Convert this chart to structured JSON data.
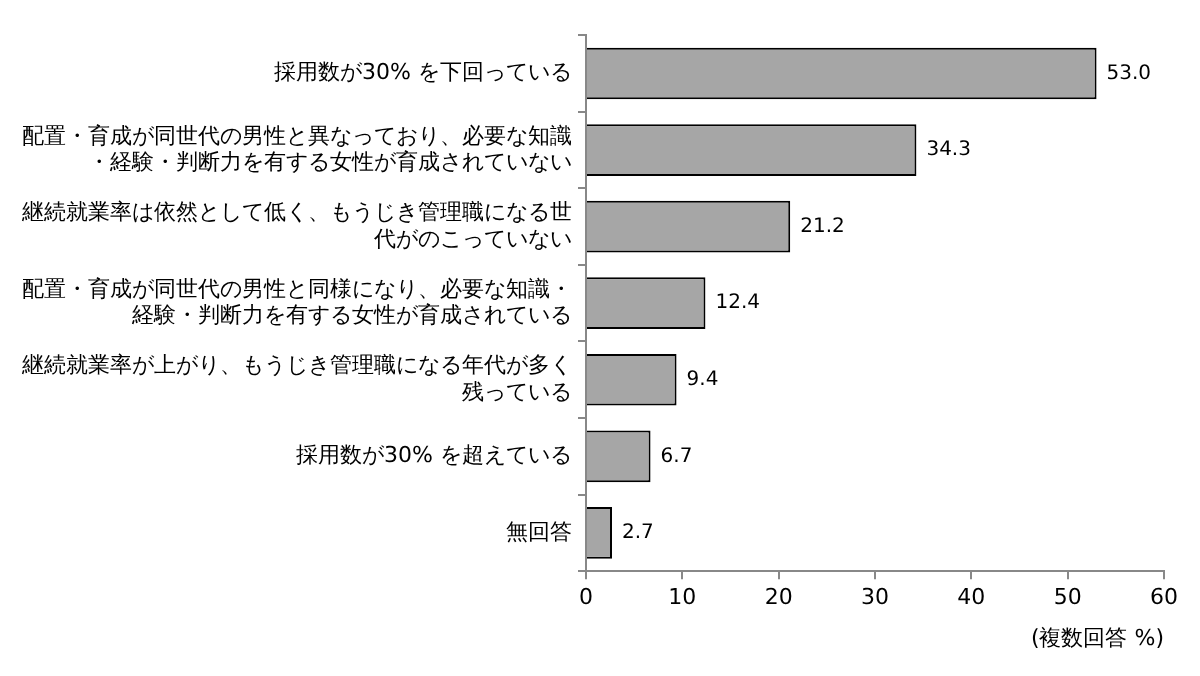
{
  "chart_data": {
    "type": "bar",
    "orientation": "horizontal",
    "xlabel": "(複数回答 %)",
    "categories": [
      "採用数が30% を下回っている",
      "配置・育成が同世代の男性と異なっており、必要な知識・経験・判断力を有する女性が育成されていない",
      "継続就業率は依然として低く、もうじき管理職になる世代がのこっていない",
      "配置・育成が同世代の男性と同様になり、必要な知識・経験・判断力を有する女性が育成されている",
      "継続就業率が上がり、もうじき管理職になる年代が多く残っている",
      "採用数が30% を超えている",
      "無回答"
    ],
    "values": [
      53.0,
      34.3,
      21.2,
      12.4,
      9.4,
      6.7,
      2.7
    ],
    "color": "#a6a6a6",
    "xlim": [
      0,
      60
    ],
    "xticks": [
      0,
      10,
      20,
      30,
      40,
      50,
      60
    ],
    "grid": false,
    "legend": false,
    "value_labels": [
      "53.0",
      "34.3",
      "21.2",
      "12.4",
      "9.4",
      "6.7",
      "2.7"
    ]
  }
}
